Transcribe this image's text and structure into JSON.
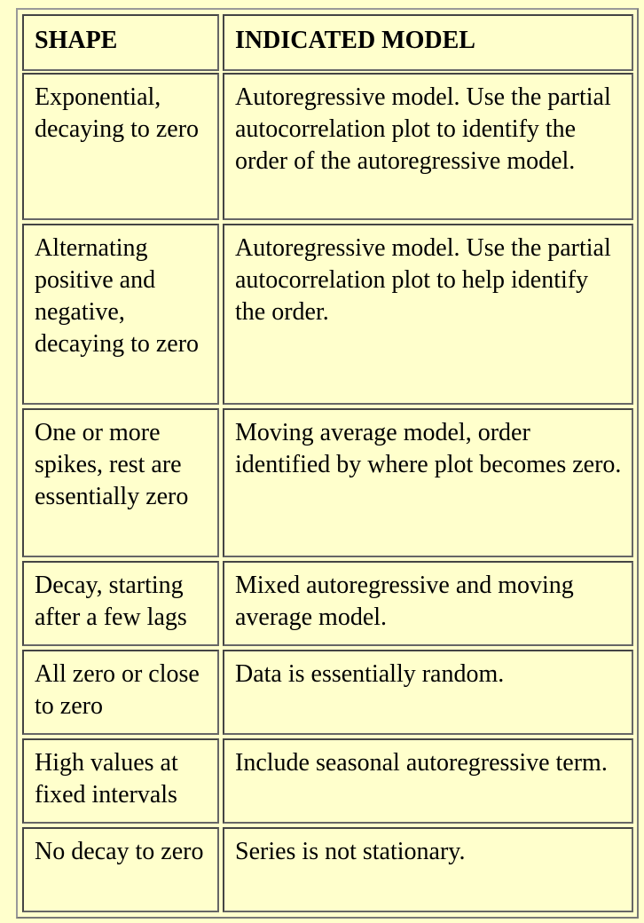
{
  "table": {
    "header": {
      "shape": "SHAPE",
      "model": "INDICATED MODEL"
    },
    "rows": [
      {
        "shape": "Exponential, decaying to zero",
        "model": "Autoregressive model. Use the partial autocorrelation plot to identify the order of the autoregressive model."
      },
      {
        "shape": "Alternating positive and negative, decaying to zero",
        "model": "Autoregressive model. Use the partial autocorrelation plot to help identify the order."
      },
      {
        "shape": "One or more spikes, rest are essentially zero",
        "model": "Moving average model, order identified by where plot becomes zero."
      },
      {
        "shape": "Decay, starting after a few lags",
        "model": "Mixed autoregressive and moving average model."
      },
      {
        "shape": "All zero or close to zero",
        "model": "Data is essentially random."
      },
      {
        "shape": "High values at fixed intervals",
        "model": "Include seasonal autoregressive term."
      },
      {
        "shape": "No decay to zero",
        "model": "Series is not stationary."
      }
    ]
  }
}
